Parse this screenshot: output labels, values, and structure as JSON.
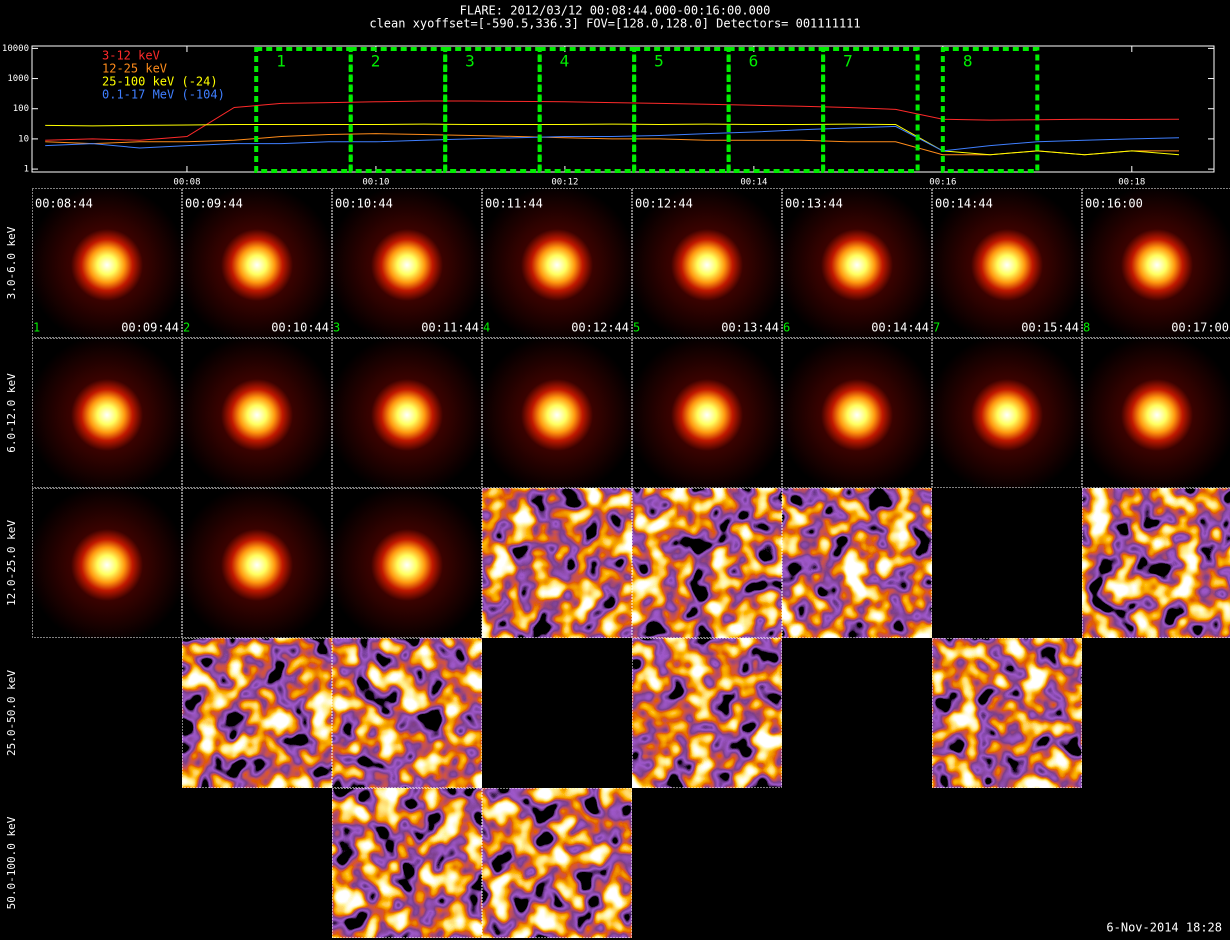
{
  "header": {
    "title": "FLARE: 2012/03/12 00:08:44.000-00:16:00.000",
    "subtitle": "clean   xyoffset=[-590.5,336.3]   FOV=[128.0,128.0]   Detectors= 001111111"
  },
  "chart_data": {
    "type": "line",
    "log_y": true,
    "x": [
      6.5,
      7,
      7.5,
      8,
      8.5,
      9,
      9.5,
      10,
      10.5,
      11,
      11.5,
      12,
      12.5,
      13,
      13.5,
      14,
      14.5,
      15,
      15.5,
      16,
      16.5,
      17,
      17.5,
      18,
      18.5
    ],
    "xlim": [
      6.36,
      18.87
    ],
    "xticks": [
      {
        "value": 8,
        "label": "00:08"
      },
      {
        "value": 10,
        "label": "00:10"
      },
      {
        "value": 12,
        "label": "00:12"
      },
      {
        "value": 14,
        "label": "00:14"
      },
      {
        "value": 16,
        "label": "00:16"
      },
      {
        "value": 18,
        "label": "00:18"
      }
    ],
    "ylim": [
      0.8,
      12000
    ],
    "yticks": [
      1,
      10,
      100,
      1000,
      10000
    ],
    "series": [
      {
        "name": "3-12 keV",
        "color": "#ff2a2a",
        "values": [
          9,
          10,
          9,
          12,
          110,
          150,
          160,
          170,
          180,
          180,
          175,
          170,
          160,
          150,
          140,
          130,
          120,
          110,
          95,
          45,
          42,
          43,
          45,
          44,
          45
        ]
      },
      {
        "name": "12-25 keV",
        "color": "#ff8c1a",
        "values": [
          8,
          7,
          8,
          8,
          9,
          12,
          14,
          15,
          14,
          13,
          12,
          11,
          10,
          10,
          9,
          9,
          9,
          8,
          8,
          3,
          3,
          4,
          3,
          4,
          4
        ]
      },
      {
        "name": "25-100 keV (-24)",
        "color": "#ffff00",
        "values": [
          28,
          27,
          28,
          29,
          30,
          30,
          30,
          30,
          31,
          30,
          30,
          30,
          31,
          30,
          31,
          30,
          30,
          31,
          30,
          4,
          3,
          4,
          3,
          4,
          3
        ]
      },
      {
        "name": "0.1-17 MeV (-104)",
        "color": "#3f7fff",
        "values": [
          6,
          7,
          5,
          6,
          7,
          7,
          8,
          8,
          9,
          10,
          11,
          12,
          12,
          13,
          15,
          17,
          20,
          23,
          26,
          4,
          6,
          8,
          9,
          10,
          11
        ]
      }
    ],
    "intervals": [
      {
        "label": "1",
        "start": 8.733,
        "end": 9.733
      },
      {
        "label": "2",
        "start": 9.733,
        "end": 10.733
      },
      {
        "label": "3",
        "start": 10.733,
        "end": 11.733
      },
      {
        "label": "4",
        "start": 11.733,
        "end": 12.733
      },
      {
        "label": "5",
        "start": 12.733,
        "end": 13.733
      },
      {
        "label": "6",
        "start": 13.733,
        "end": 14.733
      },
      {
        "label": "7",
        "start": 14.733,
        "end": 15.733
      },
      {
        "label": "8",
        "start": 16.0,
        "end": 17.0
      }
    ],
    "interval_color": "#00ee00"
  },
  "images": {
    "columns": [
      {
        "number": "1",
        "start": "00:08:44",
        "end": "00:09:44"
      },
      {
        "number": "2",
        "start": "00:09:44",
        "end": "00:10:44"
      },
      {
        "number": "3",
        "start": "00:10:44",
        "end": "00:11:44"
      },
      {
        "number": "4",
        "start": "00:11:44",
        "end": "00:12:44"
      },
      {
        "number": "5",
        "start": "00:12:44",
        "end": "00:13:44"
      },
      {
        "number": "6",
        "start": "00:13:44",
        "end": "00:14:44"
      },
      {
        "number": "7",
        "start": "00:14:44",
        "end": "00:15:44"
      },
      {
        "number": "8",
        "start": "00:16:00",
        "end": "00:17:00"
      }
    ],
    "rows": [
      {
        "label": "3.0-6.0 keV",
        "cells": [
          "source",
          "source",
          "source",
          "source",
          "source",
          "source",
          "source",
          "source"
        ]
      },
      {
        "label": "6.0-12.0 keV",
        "cells": [
          "source",
          "source",
          "source",
          "source",
          "source",
          "source",
          "source",
          "source"
        ]
      },
      {
        "label": "12.0-25.0 keV",
        "cells": [
          "source",
          "source",
          "source",
          "noise",
          "noise",
          "noise",
          null,
          "noise"
        ]
      },
      {
        "label": "25.0-50.0 keV",
        "cells": [
          null,
          "noise",
          "noise",
          null,
          "noise",
          null,
          "noise",
          null
        ]
      },
      {
        "label": "50.0-100.0 keV",
        "cells": [
          null,
          null,
          "noise",
          "noise",
          null,
          null,
          null,
          null
        ]
      }
    ]
  },
  "footer": "6-Nov-2014 18:28"
}
